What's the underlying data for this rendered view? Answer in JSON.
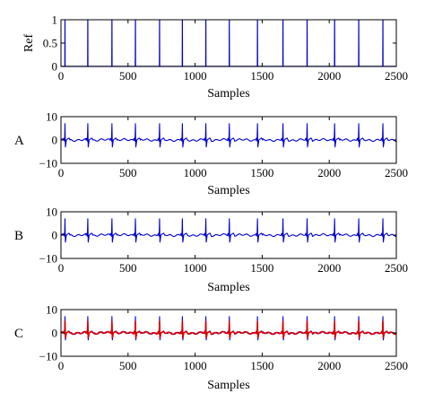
{
  "chart_data": [
    {
      "type": "line",
      "panel_label": "",
      "ylabel": "Ref",
      "xlabel": "Samples",
      "xlim": [
        0,
        2500
      ],
      "ylim": [
        0,
        1
      ],
      "xticks": [
        0,
        500,
        1000,
        1500,
        2000,
        2500
      ],
      "yticks": [
        0,
        0.5,
        1
      ],
      "ytick_labels": [
        "0",
        "0.5",
        "1"
      ],
      "grid": false,
      "signal": "impulse train",
      "spike_positions": [
        30,
        200,
        380,
        555,
        735,
        905,
        1080,
        1255,
        1465,
        1655,
        1835,
        2040,
        2220,
        2400
      ],
      "series": [
        {
          "color": "#0000cc",
          "peak": 1,
          "baseline": 0
        }
      ]
    },
    {
      "type": "line",
      "panel_label": "A",
      "ylabel": "",
      "xlabel": "Samples",
      "xlim": [
        0,
        2500
      ],
      "ylim": [
        -10,
        10
      ],
      "xticks": [
        0,
        500,
        1000,
        1500,
        2000,
        2500
      ],
      "yticks": [
        -10,
        0,
        10
      ],
      "ytick_labels": [
        "−10",
        "0",
        "10"
      ],
      "grid": false,
      "signal": "ECG",
      "beat_positions": [
        30,
        200,
        380,
        555,
        735,
        905,
        1080,
        1255,
        1465,
        1655,
        1835,
        2040,
        2220,
        2400
      ],
      "series": [
        {
          "color": "#0000cc",
          "peak": 7,
          "trough": -3,
          "baseline": 0
        }
      ]
    },
    {
      "type": "line",
      "panel_label": "B",
      "ylabel": "",
      "xlabel": "Samples",
      "xlim": [
        0,
        2500
      ],
      "ylim": [
        -10,
        10
      ],
      "xticks": [
        0,
        500,
        1000,
        1500,
        2000,
        2500
      ],
      "yticks": [
        -10,
        0,
        10
      ],
      "ytick_labels": [
        "−10",
        "0",
        "10"
      ],
      "grid": false,
      "signal": "ECG",
      "beat_positions": [
        30,
        200,
        380,
        555,
        735,
        905,
        1080,
        1255,
        1465,
        1655,
        1835,
        2040,
        2220,
        2400
      ],
      "series": [
        {
          "color": "#0000cc",
          "peak": 7,
          "trough": -3,
          "baseline": 0
        }
      ]
    },
    {
      "type": "line",
      "panel_label": "C",
      "ylabel": "",
      "xlabel": "Samples",
      "xlim": [
        0,
        2500
      ],
      "ylim": [
        -10,
        10
      ],
      "xticks": [
        0,
        500,
        1000,
        1500,
        2000,
        2500
      ],
      "yticks": [
        -10,
        0,
        10
      ],
      "ytick_labels": [
        "−10",
        "0",
        "10"
      ],
      "grid": false,
      "signal": "ECG",
      "beat_positions": [
        30,
        200,
        380,
        555,
        735,
        905,
        1080,
        1255,
        1465,
        1655,
        1835,
        2040,
        2220,
        2400
      ],
      "series": [
        {
          "color": "#0000cc",
          "peak": 7,
          "trough": -3,
          "baseline": 0
        },
        {
          "color": "#dd0000",
          "peak": 5,
          "trough": -2,
          "baseline": 0
        }
      ]
    }
  ]
}
